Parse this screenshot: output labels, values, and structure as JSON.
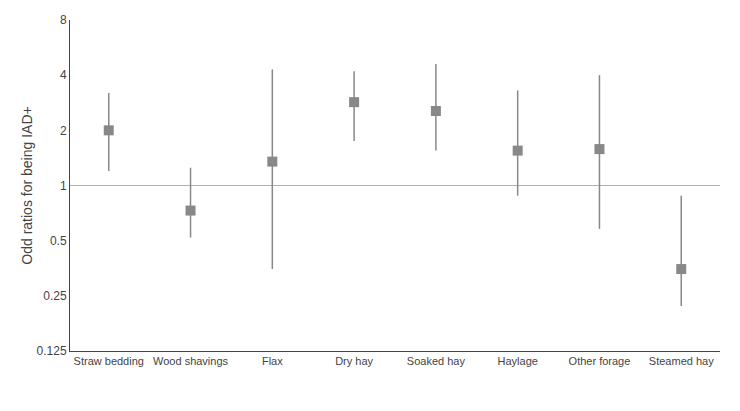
{
  "chart_data": {
    "type": "scatter",
    "categories": [
      "Straw bedding",
      "Wood shavings",
      "Flax",
      "Dry hay",
      "Soaked hay",
      "Haylage",
      "Other forage",
      "Steamed hay"
    ],
    "values": [
      2.0,
      0.73,
      1.35,
      2.85,
      2.55,
      1.55,
      1.58,
      0.35
    ],
    "ci_lower": [
      1.2,
      0.52,
      0.35,
      1.75,
      1.55,
      0.88,
      0.58,
      0.22
    ],
    "ci_upper": [
      3.2,
      1.25,
      4.3,
      4.2,
      4.6,
      3.3,
      4.0,
      0.88
    ],
    "color": "#888888",
    "marker": "square",
    "ylabel": "Odd ratios for being IAD+",
    "log": "y",
    "ylim": [
      0.125,
      8
    ],
    "yticks": [
      0.125,
      0.25,
      0.5,
      1,
      2,
      4,
      8
    ],
    "ref_line": 1,
    "grid": false
  }
}
